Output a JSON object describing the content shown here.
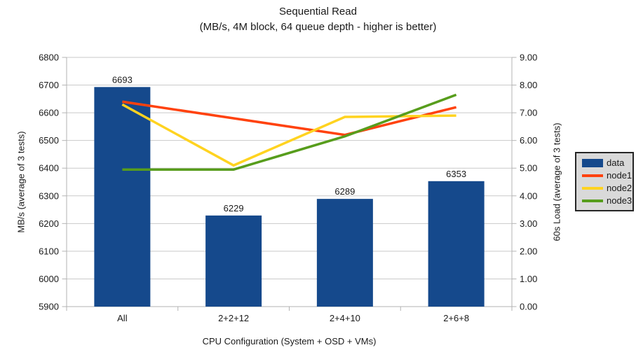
{
  "title": "Sequential Read",
  "subtitle": "(MB/s, 4M block, 64 queue depth - higher is better)",
  "chart_data": {
    "type": "bar",
    "subtype": "bar-line-combo",
    "categories": [
      "All",
      "2+2+12",
      "2+4+10",
      "2+6+8"
    ],
    "xlabel": "CPU Configuration (System + OSD + VMs)",
    "grid": "horizontal",
    "left_axis": {
      "label": "MB/s (average of 3 tests)",
      "min": 5900,
      "max": 6800,
      "step": 100,
      "ticks": [
        "6800",
        "6700",
        "6600",
        "6500",
        "6400",
        "6300",
        "6200",
        "6100",
        "6000",
        "5900"
      ]
    },
    "right_axis": {
      "label": "60s Load (average of 3 tests)",
      "min": 0,
      "max": 9,
      "step": 1,
      "ticks": [
        "9.00",
        "8.00",
        "7.00",
        "6.00",
        "5.00",
        "4.00",
        "3.00",
        "2.00",
        "1.00",
        "0.00"
      ]
    },
    "series": [
      {
        "name": "data",
        "type": "bar",
        "axis": "left",
        "color": "#15498c",
        "values": [
          6693,
          6229,
          6289,
          6353
        ],
        "labels": [
          "6693",
          "6229",
          "6289",
          "6353"
        ]
      },
      {
        "name": "node1",
        "type": "line",
        "axis": "right",
        "color": "#ff420e",
        "values": [
          7.4,
          6.8,
          6.2,
          7.2
        ]
      },
      {
        "name": "node2",
        "type": "line",
        "axis": "right",
        "color": "#ffd320",
        "values": [
          7.3,
          5.1,
          6.85,
          6.9
        ]
      },
      {
        "name": "node3",
        "type": "line",
        "axis": "right",
        "color": "#579d1c",
        "values": [
          4.95,
          4.95,
          6.15,
          7.65
        ]
      }
    ],
    "legend": {
      "position": "right",
      "entries": [
        "data",
        "node1",
        "node2",
        "node3"
      ]
    }
  },
  "style": {
    "grid_color": "#c9c9c9",
    "axis_color": "#b3b3b3",
    "text_color": "#1a1a1a",
    "background": "#ffffff",
    "legend_bg": "#d9d9d9"
  }
}
